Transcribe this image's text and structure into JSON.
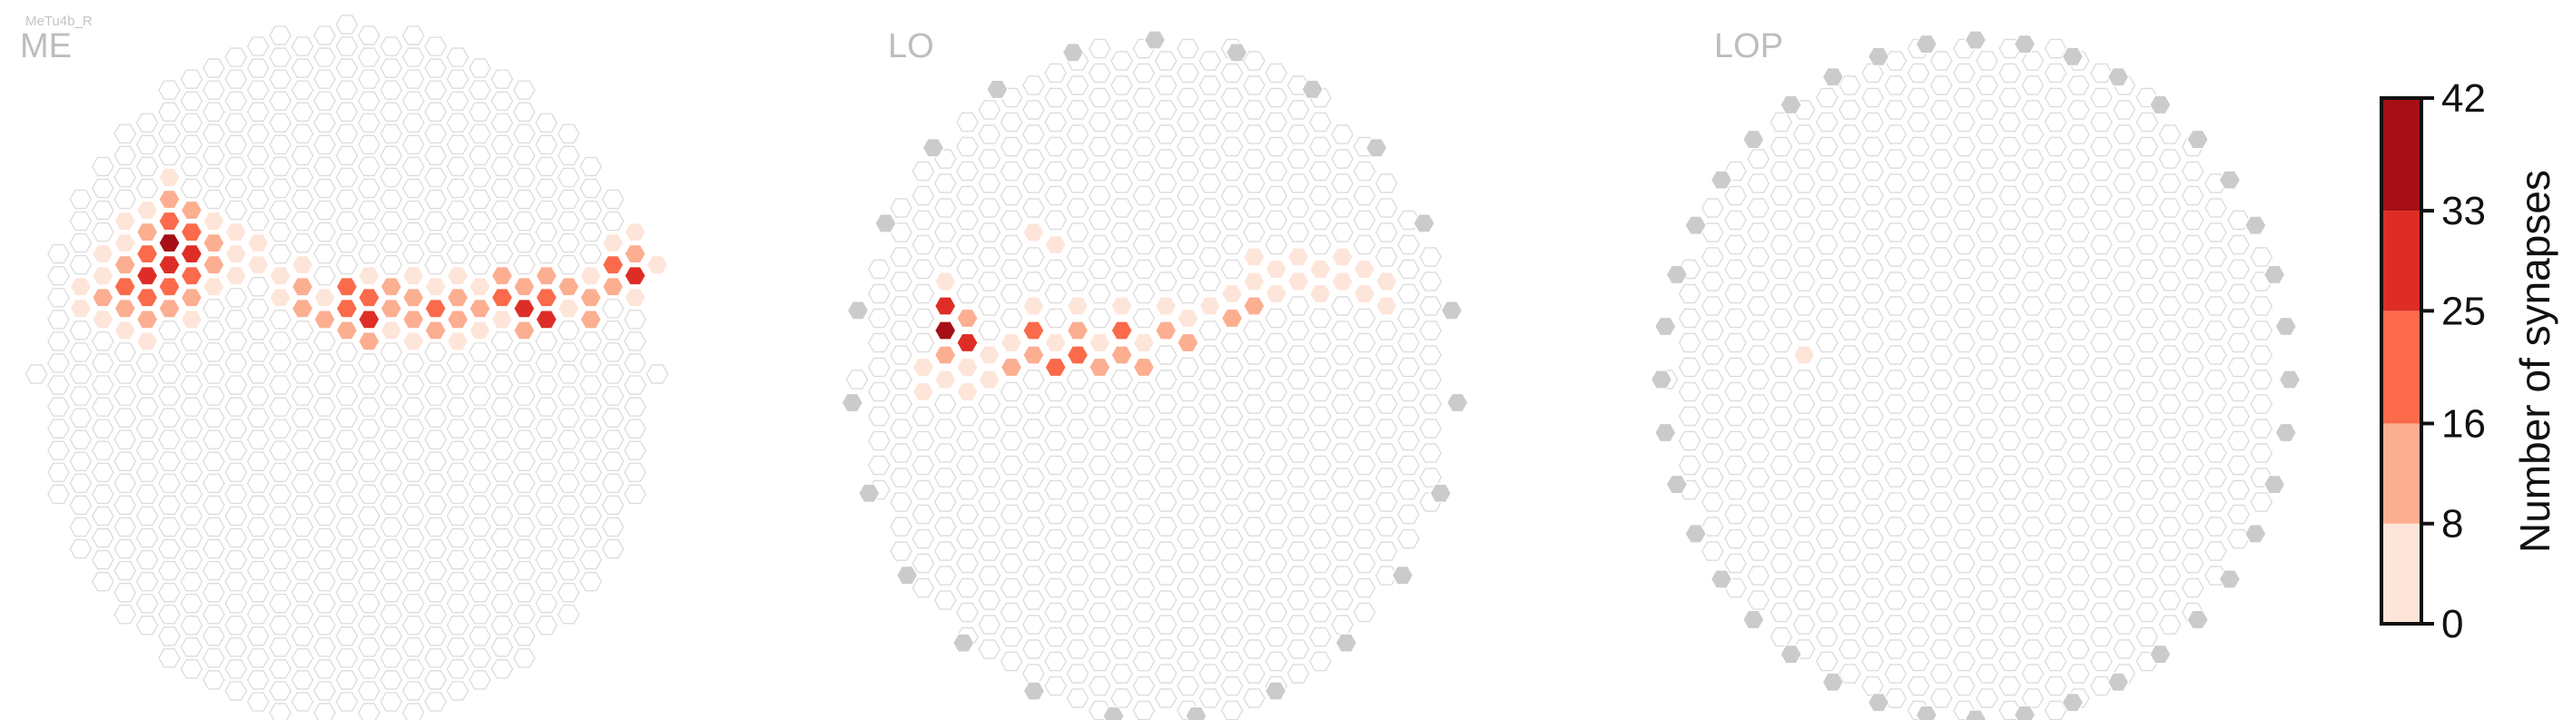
{
  "figure": {
    "cell_type": "MeTu4b_R"
  },
  "colors": {
    "empty_fill": "#ffffff",
    "empty_stroke": "#dcdcdc",
    "outside_fill": "#cbcbcb",
    "scale": [
      "#fee5d9",
      "#fcae91",
      "#fb6a4a",
      "#de2d26",
      "#a50f15"
    ]
  },
  "chart_data": {
    "type": "heatmap",
    "subtype": "hexagonal-column-map",
    "panels": [
      {
        "label": "ME",
        "rows": 32,
        "cols": 29,
        "cells": [
          [
            2,
            12,
            1
          ],
          [
            2,
            13,
            1
          ],
          [
            3,
            10,
            1
          ],
          [
            3,
            11,
            1
          ],
          [
            3,
            12,
            2
          ],
          [
            3,
            13,
            1
          ],
          [
            4,
            9,
            1
          ],
          [
            4,
            10,
            1
          ],
          [
            4,
            11,
            2
          ],
          [
            4,
            12,
            3
          ],
          [
            4,
            13,
            2
          ],
          [
            4,
            14,
            1
          ],
          [
            5,
            8,
            1
          ],
          [
            5,
            9,
            2
          ],
          [
            5,
            10,
            3
          ],
          [
            5,
            11,
            4
          ],
          [
            5,
            12,
            3
          ],
          [
            5,
            13,
            2
          ],
          [
            5,
            14,
            1
          ],
          [
            6,
            7,
            1
          ],
          [
            6,
            8,
            2
          ],
          [
            6,
            9,
            3
          ],
          [
            6,
            10,
            5
          ],
          [
            6,
            11,
            4
          ],
          [
            6,
            12,
            3
          ],
          [
            6,
            13,
            2
          ],
          [
            7,
            8,
            2
          ],
          [
            7,
            9,
            3
          ],
          [
            7,
            10,
            4
          ],
          [
            7,
            11,
            3
          ],
          [
            7,
            12,
            2
          ],
          [
            7,
            13,
            1
          ],
          [
            8,
            9,
            1
          ],
          [
            8,
            10,
            2
          ],
          [
            8,
            11,
            2
          ],
          [
            8,
            12,
            1
          ],
          [
            9,
            9,
            1
          ],
          [
            9,
            10,
            1
          ],
          [
            9,
            11,
            1
          ],
          [
            10,
            10,
            1
          ],
          [
            10,
            11,
            1
          ],
          [
            11,
            11,
            1
          ],
          [
            11,
            12,
            1
          ],
          [
            12,
            11,
            1
          ],
          [
            12,
            12,
            2
          ],
          [
            12,
            13,
            2
          ],
          [
            13,
            12,
            1
          ],
          [
            13,
            13,
            2
          ],
          [
            14,
            12,
            3
          ],
          [
            14,
            13,
            3
          ],
          [
            14,
            14,
            2
          ],
          [
            15,
            11,
            1
          ],
          [
            15,
            12,
            3
          ],
          [
            15,
            13,
            4
          ],
          [
            15,
            14,
            2
          ],
          [
            16,
            12,
            2
          ],
          [
            16,
            13,
            2
          ],
          [
            16,
            14,
            1
          ],
          [
            17,
            11,
            1
          ],
          [
            17,
            12,
            2
          ],
          [
            17,
            13,
            2
          ],
          [
            17,
            14,
            1
          ],
          [
            18,
            12,
            1
          ],
          [
            18,
            13,
            3
          ],
          [
            18,
            14,
            2
          ],
          [
            19,
            11,
            1
          ],
          [
            19,
            12,
            2
          ],
          [
            19,
            13,
            2
          ],
          [
            19,
            14,
            1
          ],
          [
            20,
            12,
            1
          ],
          [
            20,
            13,
            2
          ],
          [
            20,
            14,
            1
          ],
          [
            21,
            11,
            2
          ],
          [
            21,
            12,
            3
          ],
          [
            21,
            13,
            1
          ],
          [
            22,
            12,
            2
          ],
          [
            22,
            13,
            4
          ],
          [
            22,
            14,
            2
          ],
          [
            23,
            11,
            2
          ],
          [
            23,
            12,
            3
          ],
          [
            23,
            13,
            4
          ],
          [
            24,
            12,
            2
          ],
          [
            24,
            13,
            1
          ],
          [
            25,
            11,
            1
          ],
          [
            25,
            12,
            2
          ],
          [
            25,
            13,
            2
          ],
          [
            26,
            10,
            1
          ],
          [
            26,
            11,
            3
          ],
          [
            26,
            12,
            2
          ],
          [
            27,
            9,
            1
          ],
          [
            27,
            10,
            2
          ],
          [
            27,
            11,
            4
          ],
          [
            27,
            12,
            1
          ],
          [
            28,
            11,
            1
          ]
        ],
        "outside": []
      },
      {
        "label": "LO",
        "rows": 28,
        "cols": 28,
        "cells": [
          [
            3,
            13,
            1
          ],
          [
            3,
            14,
            1
          ],
          [
            4,
            10,
            1
          ],
          [
            4,
            11,
            4
          ],
          [
            4,
            12,
            5
          ],
          [
            4,
            13,
            2
          ],
          [
            4,
            14,
            1
          ],
          [
            5,
            11,
            2
          ],
          [
            5,
            12,
            4
          ],
          [
            5,
            13,
            1
          ],
          [
            5,
            14,
            1
          ],
          [
            6,
            13,
            1
          ],
          [
            6,
            14,
            1
          ],
          [
            7,
            12,
            1
          ],
          [
            7,
            13,
            2
          ],
          [
            8,
            11,
            1
          ],
          [
            8,
            12,
            3
          ],
          [
            8,
            13,
            2
          ],
          [
            9,
            12,
            1
          ],
          [
            9,
            13,
            3
          ],
          [
            10,
            11,
            1
          ],
          [
            10,
            12,
            2
          ],
          [
            10,
            13,
            3
          ],
          [
            11,
            12,
            1
          ],
          [
            11,
            13,
            2
          ],
          [
            12,
            11,
            1
          ],
          [
            12,
            12,
            3
          ],
          [
            12,
            13,
            2
          ],
          [
            13,
            12,
            1
          ],
          [
            13,
            13,
            2
          ],
          [
            14,
            11,
            1
          ],
          [
            14,
            12,
            2
          ],
          [
            15,
            11,
            1
          ],
          [
            15,
            12,
            2
          ],
          [
            16,
            11,
            1
          ],
          [
            17,
            10,
            1
          ],
          [
            17,
            11,
            2
          ],
          [
            18,
            10,
            1
          ],
          [
            18,
            11,
            2
          ],
          [
            19,
            10,
            1
          ],
          [
            20,
            9,
            1
          ],
          [
            20,
            10,
            1
          ],
          [
            21,
            9,
            1
          ],
          [
            21,
            10,
            1
          ],
          [
            22,
            9,
            1
          ],
          [
            22,
            10,
            1
          ],
          [
            23,
            9,
            1
          ],
          [
            23,
            10,
            1
          ],
          [
            24,
            10,
            1
          ],
          [
            24,
            11,
            1
          ],
          [
            8,
            8,
            1
          ],
          [
            9,
            8,
            1
          ],
          [
            18,
            9,
            1
          ],
          [
            19,
            9,
            1
          ]
        ],
        "outside": [
          [
            2,
            0
          ],
          [
            3,
            1
          ],
          [
            5,
            2
          ],
          [
            8,
            3
          ],
          [
            1,
            8
          ],
          [
            0,
            15
          ],
          [
            1,
            20
          ],
          [
            4,
            26
          ],
          [
            6,
            26
          ],
          [
            8,
            27
          ],
          [
            10,
            27
          ],
          [
            12,
            27
          ],
          [
            14,
            26
          ],
          [
            16,
            25
          ],
          [
            18,
            24
          ],
          [
            20,
            22
          ],
          [
            22,
            20
          ],
          [
            24,
            17
          ],
          [
            25,
            11
          ],
          [
            26,
            6
          ],
          [
            27,
            3
          ],
          [
            22,
            1
          ],
          [
            19,
            0
          ]
        ],
        "outside_note": "gray hexagons mark columns outside the region"
      },
      {
        "label": "LOP",
        "rows": 28,
        "cols": 28,
        "cells": [
          [
            6,
            13,
            1
          ]
        ],
        "outside": [
          [
            1,
            6
          ],
          [
            2,
            5
          ],
          [
            3,
            4
          ],
          [
            4,
            3
          ],
          [
            5,
            2
          ],
          [
            6,
            2
          ],
          [
            7,
            1
          ],
          [
            8,
            1
          ],
          [
            0,
            12
          ],
          [
            1,
            14
          ],
          [
            2,
            16
          ],
          [
            3,
            18
          ],
          [
            4,
            20
          ],
          [
            5,
            21
          ],
          [
            6,
            22
          ],
          [
            7,
            23
          ],
          [
            8,
            24
          ],
          [
            9,
            24
          ],
          [
            10,
            25
          ],
          [
            12,
            25
          ],
          [
            14,
            25
          ],
          [
            16,
            25
          ],
          [
            18,
            24
          ],
          [
            20,
            23
          ],
          [
            22,
            22
          ],
          [
            24,
            20
          ],
          [
            25,
            18
          ],
          [
            26,
            15
          ],
          [
            27,
            10
          ],
          [
            26,
            7
          ],
          [
            25,
            5
          ],
          [
            24,
            4
          ],
          [
            23,
            3
          ],
          [
            12,
            0
          ],
          [
            14,
            0
          ],
          [
            16,
            0
          ],
          [
            18,
            1
          ],
          [
            20,
            1
          ],
          [
            22,
            2
          ],
          [
            11,
            0
          ]
        ],
        "outside_note": "gray hexagons mark columns outside the region"
      }
    ],
    "colorbar": {
      "title": "Number of synapses",
      "ticks": [
        0,
        8,
        16,
        25,
        33,
        42
      ],
      "range": [
        0,
        42
      ],
      "colors": [
        "#fee5d9",
        "#fcae91",
        "#fb6a4a",
        "#de2d26",
        "#a50f15"
      ]
    }
  }
}
